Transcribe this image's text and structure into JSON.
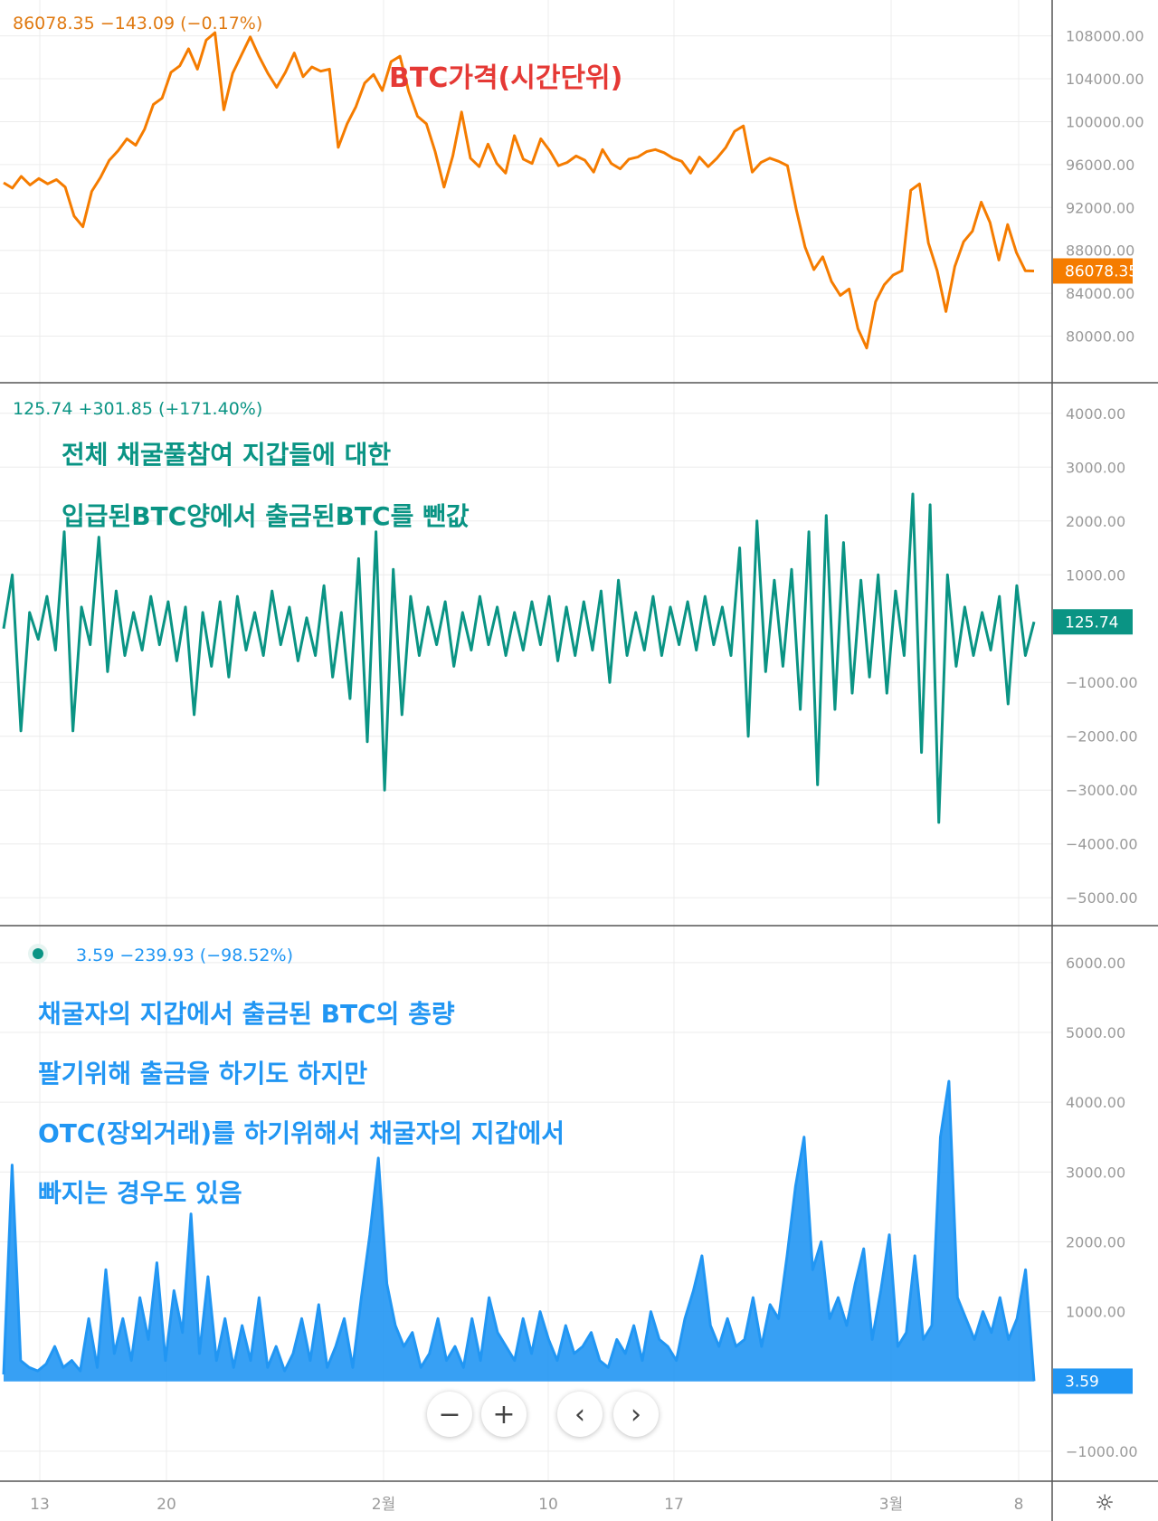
{
  "panels": [
    {
      "id": "price",
      "header": "86078.35  −143.09 (−0.17%)",
      "annotations": [
        "BTC가격(시간단위)"
      ],
      "color": "#f57c00",
      "last_value_label": "86078.35",
      "last_value": 86078.35,
      "y_ticks": [
        "108000.00",
        "104000.00",
        "100000.00",
        "96000.00",
        "92000.00",
        "88000.00",
        "84000.00",
        "80000.00"
      ]
    },
    {
      "id": "net_flow",
      "header": "125.74  +301.85 (+171.40%)",
      "annotations": [
        "전체 채굴풀참여 지갑들에 대한",
        "입급된BTC양에서 출금된BTC를 뺀값"
      ],
      "color": "#0a9484",
      "last_value_label": "125.74",
      "last_value": 125.74,
      "y_ticks": [
        "4000.00",
        "3000.00",
        "2000.00",
        "1000.00",
        "−1000.00",
        "−2000.00",
        "−3000.00",
        "−4000.00",
        "−5000.00"
      ]
    },
    {
      "id": "miner_outflow",
      "header": "3.59  −239.93 (−98.52%)",
      "annotations": [
        "채굴자의 지갑에서 출금된 BTC의 총량",
        "팔기위해 출금을 하기도 하지만",
        "OTC(장외거래)를 하기위해서 채굴자의 지갑에서",
        "빠지는 경우도 있음"
      ],
      "color": "#2196f3",
      "last_value_label": "3.59",
      "last_value": 3.59,
      "y_ticks": [
        "6000.00",
        "5000.00",
        "4000.00",
        "3000.00",
        "2000.00",
        "1000.00",
        "−1000.00"
      ]
    }
  ],
  "x_ticks": [
    "13",
    "20",
    "2월",
    "10",
    "17",
    "3월",
    "8"
  ],
  "controls": {
    "zoom_out": "−",
    "zoom_in": "+",
    "prev": "‹",
    "next": "›"
  },
  "chart_data": [
    {
      "type": "line",
      "series": [
        {
          "values": [
            94300,
            93800,
            94900,
            94100,
            94700,
            94200,
            94600,
            93900,
            91200,
            90200,
            93500,
            94800,
            96400,
            97300,
            98400,
            97800,
            99300,
            101600,
            102200,
            104600,
            105200,
            106800,
            104900,
            107600,
            108300,
            101100,
            104500,
            106200,
            107900,
            106100,
            104500,
            103200,
            104600,
            106400,
            104200,
            105100,
            104700,
            104900,
            97600,
            99800,
            101400,
            103600,
            104400,
            102900,
            105600,
            106100,
            102800,
            100500,
            99800,
            97200,
            93900,
            96800,
            100900,
            96600,
            95800,
            97900,
            96100,
            95200,
            98700,
            96500,
            96100,
            98400,
            97300,
            95900,
            96200,
            96800,
            96400,
            95300,
            97400,
            96100,
            95600,
            96500,
            96700,
            97200,
            97400,
            97100,
            96600,
            96300,
            95200,
            96700,
            95800,
            96600,
            97600,
            99100,
            99600,
            95300,
            96200,
            96600,
            96300,
            95900,
            91800,
            88300,
            86200,
            87400,
            85100,
            83800,
            84400,
            80700,
            78900,
            83200,
            84800,
            85700,
            86100,
            93600,
            94200,
            88700,
            86100,
            82300,
            86500,
            88800,
            89800,
            92500,
            90600,
            87100,
            90400,
            87800,
            86100,
            86078
          ]
        }
      ],
      "x_labels": [
        "13",
        "20",
        "2월",
        "10",
        "17",
        "3월",
        "8"
      ],
      "ylim": [
        76500,
        110500
      ]
    },
    {
      "type": "line",
      "series": [
        {
          "values": [
            0,
            1000,
            -1900,
            300,
            -200,
            600,
            -400,
            1800,
            -1900,
            400,
            -300,
            1700,
            -800,
            700,
            -500,
            300,
            -400,
            600,
            -300,
            500,
            -600,
            400,
            -1600,
            300,
            -700,
            500,
            -900,
            600,
            -400,
            300,
            -500,
            700,
            -300,
            400,
            -600,
            200,
            -500,
            800,
            -900,
            300,
            -1300,
            1300,
            -2100,
            1800,
            -3000,
            1100,
            -1600,
            600,
            -500,
            400,
            -300,
            500,
            -700,
            300,
            -400,
            600,
            -300,
            400,
            -500,
            300,
            -400,
            500,
            -300,
            600,
            -600,
            400,
            -500,
            500,
            -400,
            700,
            -1000,
            900,
            -500,
            300,
            -400,
            600,
            -500,
            400,
            -300,
            500,
            -400,
            600,
            -300,
            400,
            -500,
            1500,
            -2000,
            2000,
            -800,
            900,
            -700,
            1100,
            -1500,
            1800,
            -2900,
            2100,
            -1500,
            1600,
            -1200,
            900,
            -900,
            1000,
            -1200,
            700,
            -500,
            2500,
            -2300,
            2300,
            -3600,
            1000,
            -700,
            400,
            -500,
            300,
            -400,
            600,
            -1400,
            800,
            -500,
            125.74
          ]
        }
      ],
      "x_labels": [
        "13",
        "20",
        "2월",
        "10",
        "17",
        "3월",
        "8"
      ],
      "ylim": [
        -5350,
        4400
      ]
    },
    {
      "type": "area",
      "series": [
        {
          "values": [
            100,
            3100,
            300,
            200,
            150,
            250,
            500,
            200,
            300,
            150,
            900,
            200,
            1600,
            400,
            900,
            300,
            1200,
            600,
            1700,
            300,
            1300,
            700,
            2400,
            400,
            1500,
            300,
            900,
            200,
            800,
            300,
            1200,
            200,
            500,
            150,
            400,
            900,
            300,
            1100,
            200,
            500,
            900,
            200,
            1200,
            2100,
            3200,
            1400,
            800,
            500,
            700,
            200,
            400,
            900,
            300,
            500,
            200,
            900,
            300,
            1200,
            700,
            500,
            300,
            900,
            400,
            1000,
            600,
            300,
            800,
            400,
            500,
            700,
            300,
            200,
            600,
            400,
            800,
            300,
            1000,
            600,
            500,
            300,
            900,
            1300,
            1800,
            800,
            500,
            900,
            500,
            600,
            1200,
            500,
            1100,
            900,
            1800,
            2800,
            3500,
            1600,
            2000,
            900,
            1200,
            800,
            1400,
            1900,
            600,
            1300,
            2100,
            500,
            700,
            1800,
            600,
            800,
            3500,
            4300,
            1200,
            900,
            600,
            1000,
            700,
            1200,
            600,
            900,
            1600,
            3.59
          ]
        }
      ],
      "x_labels": [
        "13",
        "20",
        "2월",
        "10",
        "17",
        "3월",
        "8"
      ],
      "ylim": [
        -1300,
        6400
      ]
    }
  ]
}
